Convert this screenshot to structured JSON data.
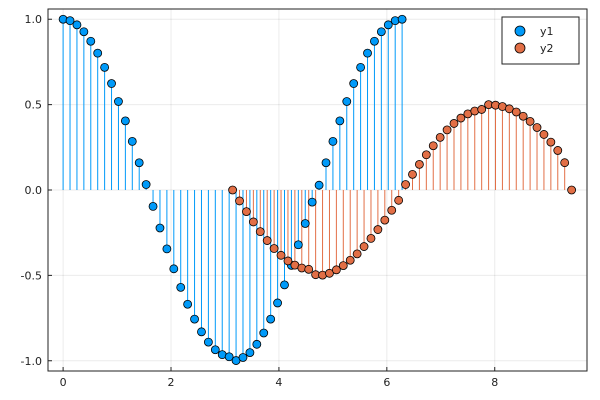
{
  "chart_data": {
    "type": "scatter",
    "style": "stem",
    "xlim": [
      -0.28,
      9.71
    ],
    "ylim": [
      -1.06,
      1.06
    ],
    "xticks": [
      0,
      2,
      4,
      6,
      8
    ],
    "yticks": [
      -1.0,
      -0.5,
      0.0,
      0.5,
      1.0
    ],
    "xtick_labels": [
      "0",
      "2",
      "4",
      "6",
      "8"
    ],
    "ytick_labels": [
      "-1.0",
      "-0.5",
      "0.0",
      "0.5",
      "1.0"
    ],
    "grid": true,
    "legend_position": "top-right",
    "series": [
      {
        "name": "y1",
        "color": "#009AF9",
        "x": [
          0.0,
          0.1282,
          0.2565,
          0.3847,
          0.5129,
          0.6411,
          0.7694,
          0.8976,
          1.0258,
          1.1541,
          1.2823,
          1.4105,
          1.5387,
          1.667,
          1.7952,
          1.9234,
          2.0517,
          2.1799,
          2.3081,
          2.4363,
          2.5646,
          2.6928,
          2.821,
          2.9493,
          3.0775,
          3.2057,
          3.3339,
          3.4622,
          3.5904,
          3.7186,
          3.8469,
          3.9751,
          4.1033,
          4.2315,
          4.3598,
          4.488,
          4.6162,
          4.7445,
          4.8727,
          5.0009,
          5.1291,
          5.2574,
          5.3856,
          5.5138,
          5.6421,
          5.7703,
          5.8985,
          6.0267,
          6.155,
          6.2832
        ],
        "y": [
          1.0,
          0.9918,
          0.9673,
          0.9269,
          0.8713,
          0.8014,
          0.7183,
          0.6235,
          0.5184,
          0.4048,
          0.2846,
          0.1596,
          0.0321,
          -0.0961,
          -0.2225,
          -0.345,
          -0.4616,
          -0.5702,
          -0.669,
          -0.7563,
          -0.8306,
          -0.8907,
          -0.9355,
          -0.9643,
          -0.9767,
          -0.9989,
          -0.9808,
          -0.9524,
          -0.9036,
          -0.8375,
          -0.7563,
          -0.6615,
          -0.5556,
          -0.4412,
          -0.3208,
          -0.1961,
          -0.0708,
          0.0282,
          0.1596,
          0.2846,
          0.4048,
          0.5184,
          0.6235,
          0.7183,
          0.8014,
          0.8713,
          0.9269,
          0.9673,
          0.9918,
          1.0
        ]
      },
      {
        "name": "y2",
        "color": "#E26F46",
        "x": [
          3.1416,
          3.2698,
          3.398,
          3.5263,
          3.6545,
          3.7827,
          3.911,
          4.0392,
          4.1674,
          4.2956,
          4.4239,
          4.5521,
          4.6803,
          4.8086,
          4.9368,
          5.065,
          5.1932,
          5.3215,
          5.4497,
          5.5779,
          5.7061,
          5.8344,
          5.9626,
          6.0908,
          6.2191,
          6.3473,
          6.4755,
          6.6037,
          6.732,
          6.8602,
          6.9884,
          7.1167,
          7.2449,
          7.3731,
          7.5013,
          7.6296,
          7.7578,
          7.886,
          8.0143,
          8.1425,
          8.2707,
          8.3989,
          8.5272,
          8.6554,
          8.7836,
          8.9119,
          9.0401,
          9.1683,
          9.2965,
          9.4248
        ],
        "y": [
          0.0,
          -0.064,
          -0.1267,
          -0.1871,
          -0.2439,
          -0.2961,
          -0.3427,
          -0.3825,
          -0.4153,
          -0.4401,
          -0.4566,
          -0.4646,
          -0.4959,
          -0.4986,
          -0.4878,
          -0.4675,
          -0.4427,
          -0.4114,
          -0.3741,
          -0.3312,
          -0.2835,
          -0.2316,
          -0.1765,
          -0.1188,
          -0.0604,
          0.0321,
          0.0916,
          0.15,
          0.2063,
          0.2593,
          0.3081,
          0.3519,
          0.3899,
          0.4214,
          0.4458,
          0.4627,
          0.4718,
          0.5,
          0.4968,
          0.4889,
          0.4755,
          0.4567,
          0.4321,
          0.4018,
          0.3661,
          0.3254,
          0.2805,
          0.2316,
          0.1599,
          0.0
        ]
      }
    ]
  }
}
